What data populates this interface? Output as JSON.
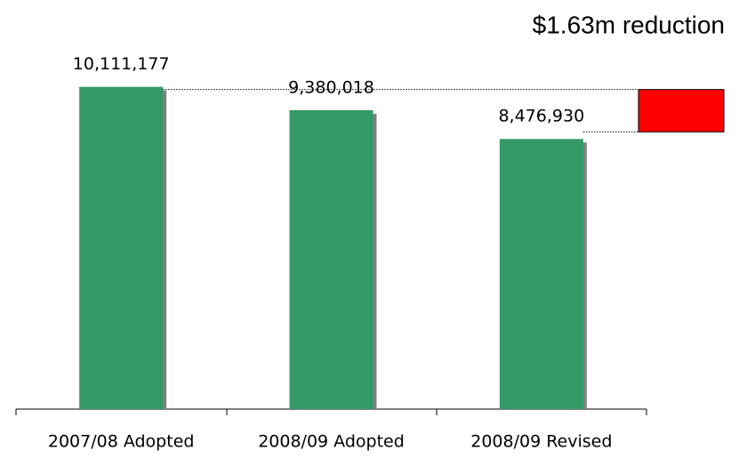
{
  "chart_data": {
    "type": "bar",
    "annotation": "$1.63m reduction",
    "categories": [
      "2007/08 Adopted",
      "2008/09 Adopted",
      "2008/09 Revised"
    ],
    "values": [
      10111177,
      9380018,
      8476930
    ],
    "value_labels": [
      "10,111,177",
      "9,380,018",
      "8,476,930"
    ],
    "color": "#339966",
    "ylim": [
      0,
      12000000
    ]
  }
}
